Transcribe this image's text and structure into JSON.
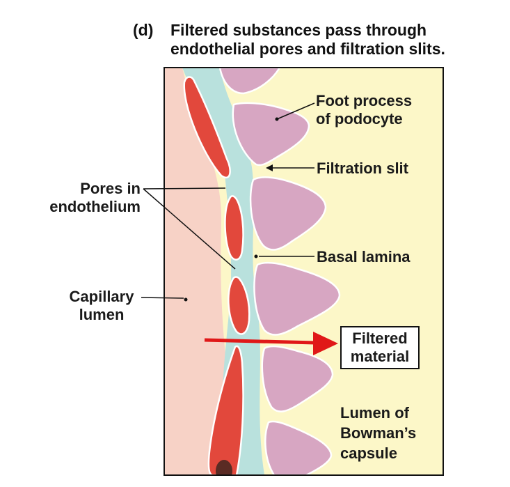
{
  "title": {
    "tag": "(d)",
    "line1": "Filtered substances pass through",
    "line2": "endothelial pores and filtration slits."
  },
  "labels": {
    "foot_process": [
      "Foot process",
      "of podocyte"
    ],
    "filtration_slit": "Filtration slit",
    "pores": [
      "Pores in",
      "endothelium"
    ],
    "basal_lamina": "Basal lamina",
    "capillary_lumen": [
      "Capillary",
      "lumen"
    ],
    "filtered_material": [
      "Filtered",
      "material"
    ],
    "bowman": [
      "Lumen of",
      "Bowman’s",
      "capsule"
    ]
  },
  "colors": {
    "capillary_lumen": "#f7d2c6",
    "endothelium": "#e2483c",
    "basal_lamina": "#b9e1dd",
    "bowman_lumen": "#fcf7c8",
    "podocyte": "#d7a6c2",
    "arrow": "#e01818"
  }
}
